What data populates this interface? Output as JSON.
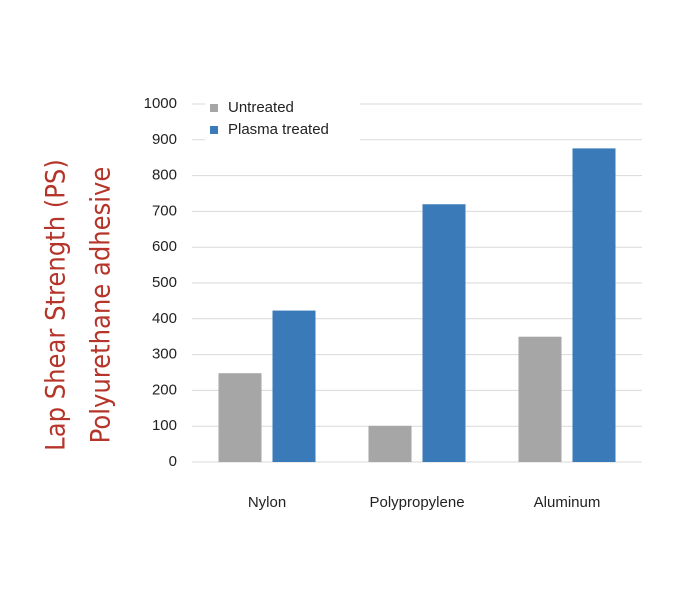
{
  "chart_data": {
    "type": "bar",
    "ylabel": [
      "Lap Shear Strength (PS)",
      "Polyurethane adhesive"
    ],
    "categories": [
      "Nylon",
      "Polypropylene",
      "Aluminum"
    ],
    "series": [
      {
        "name": "Untreated",
        "color": "#a6a6a6",
        "values": [
          248,
          101,
          350
        ]
      },
      {
        "name": "Plasma treated",
        "color": "#3a7ab8",
        "values": [
          423,
          720,
          876
        ]
      }
    ],
    "ylim": [
      0,
      1000
    ],
    "yticks": [
      0,
      100,
      200,
      300,
      400,
      500,
      600,
      700,
      800,
      900,
      1000
    ],
    "grid": true,
    "legend": "top-left"
  }
}
